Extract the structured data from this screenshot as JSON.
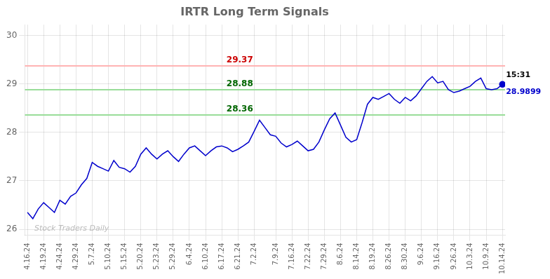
{
  "chart_data": {
    "type": "line",
    "title": "IRTR Long Term Signals",
    "categories": [
      "4.16.24",
      null,
      null,
      "4.19.24",
      null,
      null,
      "4.24.24",
      null,
      null,
      "4.29.24",
      null,
      null,
      "5.7.24",
      null,
      null,
      "5.10.24",
      null,
      null,
      "5.15.24",
      null,
      null,
      "5.20.24",
      null,
      null,
      "5.23.24",
      null,
      null,
      "5.29.24",
      null,
      null,
      "6.4.24",
      null,
      null,
      "6.10.24",
      null,
      null,
      "6.17.24",
      null,
      null,
      "6.21.24",
      null,
      null,
      "7.2.24",
      null,
      null,
      null,
      "7.9.24",
      null,
      null,
      "7.16.24",
      null,
      null,
      "7.22.24",
      null,
      null,
      "7.29.24",
      null,
      null,
      "8.6.24",
      null,
      null,
      "8.14.24",
      null,
      null,
      "8.19.24",
      null,
      null,
      "8.26.24",
      null,
      null,
      "8.30.24",
      null,
      null,
      "9.6.24",
      null,
      null,
      "9.16.24",
      null,
      null,
      "9.26.24",
      null,
      null,
      "10.3.24",
      null,
      null,
      "10.9.24",
      null,
      null,
      "10.14.24"
    ],
    "values": [
      26.35,
      26.22,
      26.42,
      26.55,
      26.45,
      26.35,
      26.6,
      26.52,
      26.68,
      26.75,
      26.92,
      27.05,
      27.38,
      27.3,
      27.25,
      27.2,
      27.42,
      27.28,
      27.25,
      27.18,
      27.3,
      27.55,
      27.68,
      27.55,
      27.45,
      27.55,
      27.62,
      27.5,
      27.4,
      27.55,
      27.68,
      27.72,
      27.62,
      27.52,
      27.62,
      27.7,
      27.72,
      27.68,
      27.6,
      27.65,
      27.72,
      27.8,
      28.02,
      28.25,
      28.1,
      27.95,
      27.92,
      27.78,
      27.7,
      27.75,
      27.82,
      27.72,
      27.62,
      27.65,
      27.8,
      28.05,
      28.28,
      28.4,
      28.15,
      27.9,
      27.8,
      27.85,
      28.2,
      28.58,
      28.72,
      28.68,
      28.74,
      28.8,
      28.68,
      28.6,
      28.72,
      28.65,
      28.75,
      28.9,
      29.05,
      29.15,
      29.02,
      29.05,
      28.88,
      28.82,
      28.85,
      28.9,
      28.95,
      29.05,
      29.12,
      28.9,
      28.88,
      28.9,
      28.9899
    ],
    "color": "#0000CC",
    "ylim": [
      25.88,
      30.22
    ],
    "yticks": [
      26,
      27,
      28,
      29,
      30
    ],
    "grid": true,
    "reference_lines": [
      {
        "y": 29.37,
        "label": "29.37",
        "color": "#FFB3B3",
        "label_color": "#CC0000"
      },
      {
        "y": 28.88,
        "label": "28.88",
        "color": "#99DD99",
        "label_color": "#006600"
      },
      {
        "y": 28.36,
        "label": "28.36",
        "color": "#99DD99",
        "label_color": "#006600"
      }
    ],
    "annotations": [
      {
        "text": "15:31"
      },
      {
        "text": "28.9899",
        "color": "#0000CC"
      }
    ],
    "watermark": "Stock Traders Daily"
  }
}
